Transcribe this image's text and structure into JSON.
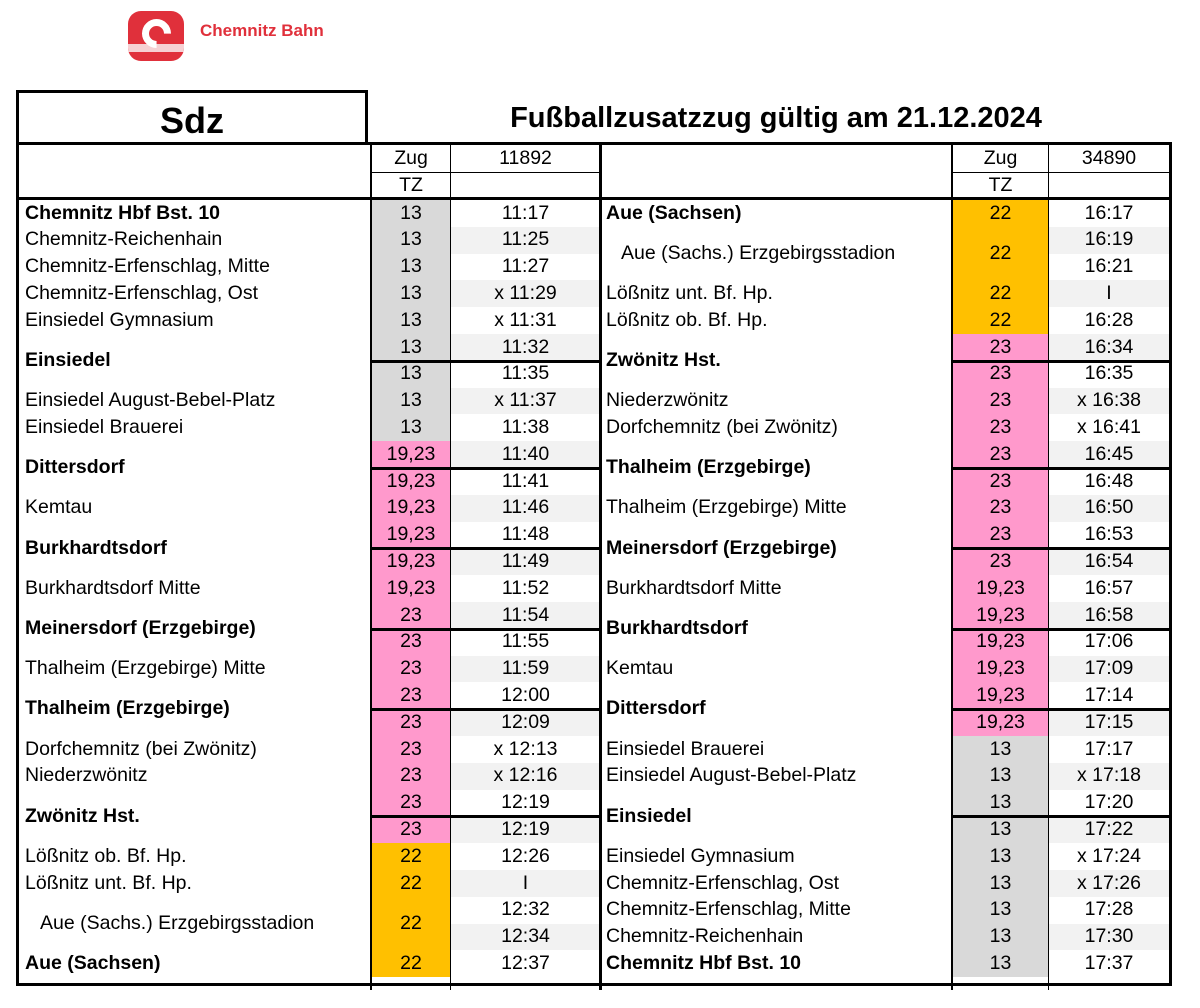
{
  "brand": {
    "name": "Chemnitz Bahn",
    "logo_letter": "C",
    "color": "#e0303b"
  },
  "header": {
    "sdz": "Sdz",
    "title": "Fußballzusatzzug gültig am 21.12.2024"
  },
  "table_header": {
    "zug_label": "Zug",
    "tz_label": "TZ"
  },
  "colors": {
    "grey": "#d9d9d9",
    "pink": "#ff99cc",
    "orange": "#ffc000",
    "stripe": "#f2f2f2"
  },
  "left": {
    "train": "11892",
    "rows": [
      {
        "station": "Chemnitz Hbf Bst. 10",
        "bold": true,
        "tz": "13",
        "tz_color": "grey",
        "times": [
          "11:17"
        ]
      },
      {
        "station": "Chemnitz-Reichenhain",
        "tz": "13",
        "tz_color": "grey",
        "times": [
          "11:25"
        ]
      },
      {
        "station": "Chemnitz-Erfenschlag, Mitte",
        "tz": "13",
        "tz_color": "grey",
        "times": [
          "11:27"
        ]
      },
      {
        "station": "Chemnitz-Erfenschlag, Ost",
        "tz": "13",
        "tz_color": "grey",
        "times": [
          "x 11:29"
        ]
      },
      {
        "station": "Einsiedel Gymnasium",
        "tz": "13",
        "tz_color": "grey",
        "times": [
          "x 11:31"
        ]
      },
      {
        "station": "Einsiedel",
        "bold": true,
        "tz": [
          "13",
          "13"
        ],
        "tz_color": "grey",
        "times": [
          "11:32",
          "11:35"
        ]
      },
      {
        "station": "Einsiedel August-Bebel-Platz",
        "tz": "13",
        "tz_color": "grey",
        "times": [
          "x 11:37"
        ]
      },
      {
        "station": "Einsiedel Brauerei",
        "tz": "13",
        "tz_color": "grey",
        "times": [
          "11:38"
        ]
      },
      {
        "station": "Dittersdorf",
        "bold": true,
        "tz": [
          "19,23",
          "19,23"
        ],
        "tz_color": "pink",
        "times": [
          "11:40",
          "11:41"
        ]
      },
      {
        "station": "Kemtau",
        "tz": "19,23",
        "tz_color": "pink",
        "times": [
          "11:46"
        ]
      },
      {
        "station": "Burkhardtsdorf",
        "bold": true,
        "tz": [
          "19,23",
          "19,23"
        ],
        "tz_color": "pink",
        "times": [
          "11:48",
          "11:49"
        ]
      },
      {
        "station": "Burkhardtsdorf Mitte",
        "tz": "19,23",
        "tz_color": "pink",
        "times": [
          "11:52"
        ]
      },
      {
        "station": "Meinersdorf (Erzgebirge)",
        "bold": true,
        "tz": [
          "23",
          "23"
        ],
        "tz_color": "pink",
        "times": [
          "11:54",
          "11:55"
        ]
      },
      {
        "station": "Thalheim (Erzgebirge) Mitte",
        "tz": "23",
        "tz_color": "pink",
        "times": [
          "11:59"
        ]
      },
      {
        "station": "Thalheim (Erzgebirge)",
        "bold": true,
        "tz": [
          "23",
          "23"
        ],
        "tz_color": "pink",
        "times": [
          "12:00",
          "12:09"
        ]
      },
      {
        "station": "Dorfchemnitz (bei Zwönitz)",
        "tz": "23",
        "tz_color": "pink",
        "times": [
          "x 12:13"
        ]
      },
      {
        "station": "Niederzwönitz",
        "tz": "23",
        "tz_color": "pink",
        "times": [
          "x 12:16"
        ]
      },
      {
        "station": "Zwönitz Hst.",
        "bold": true,
        "tz": [
          "23",
          "23"
        ],
        "tz_color": "pink",
        "times": [
          "12:19",
          "12:19"
        ]
      },
      {
        "station": "Lößnitz ob. Bf. Hp.",
        "tz": "22",
        "tz_color": "orange",
        "times": [
          "12:26"
        ]
      },
      {
        "station": "Lößnitz unt. Bf. Hp.",
        "tz": "22",
        "tz_color": "orange",
        "times": [
          "I"
        ]
      },
      {
        "station": "Aue (Sachs.) Erzgebirgsstadion",
        "indent": true,
        "tz": "22",
        "tz_color": "orange",
        "times": [
          "12:32",
          "12:34"
        ]
      },
      {
        "station": "Aue (Sachsen)",
        "bold": true,
        "tz": "22",
        "tz_color": "orange",
        "times": [
          "12:37"
        ]
      }
    ]
  },
  "right": {
    "train": "34890",
    "rows": [
      {
        "station": "Aue (Sachsen)",
        "bold": true,
        "tz": "22",
        "tz_color": "orange",
        "times": [
          "16:17"
        ]
      },
      {
        "station": "Aue (Sachs.) Erzgebirgsstadion",
        "indent": true,
        "tz": "22",
        "tz_color": "orange",
        "times": [
          "16:19",
          "16:21"
        ]
      },
      {
        "station": "Lößnitz unt. Bf. Hp.",
        "tz": "22",
        "tz_color": "orange",
        "times": [
          "I"
        ]
      },
      {
        "station": "Lößnitz ob. Bf. Hp.",
        "tz": "22",
        "tz_color": "orange",
        "times": [
          "16:28"
        ]
      },
      {
        "station": "Zwönitz Hst.",
        "bold": true,
        "tz": [
          "23",
          "23"
        ],
        "tz_color": "pink",
        "times": [
          "16:34",
          "16:35"
        ]
      },
      {
        "station": "Niederzwönitz",
        "tz": "23",
        "tz_color": "pink",
        "times": [
          "x 16:38"
        ]
      },
      {
        "station": "Dorfchemnitz (bei Zwönitz)",
        "tz": "23",
        "tz_color": "pink",
        "times": [
          "x 16:41"
        ]
      },
      {
        "station": "Thalheim (Erzgebirge)",
        "bold": true,
        "tz": [
          "23",
          "23"
        ],
        "tz_color": "pink",
        "times": [
          "16:45",
          "16:48"
        ]
      },
      {
        "station": "Thalheim (Erzgebirge) Mitte",
        "tz": "23",
        "tz_color": "pink",
        "times": [
          "16:50"
        ]
      },
      {
        "station": "Meinersdorf (Erzgebirge)",
        "bold": true,
        "tz": [
          "23",
          "23"
        ],
        "tz_color": "pink",
        "times": [
          "16:53",
          "16:54"
        ]
      },
      {
        "station": "Burkhardtsdorf Mitte",
        "tz": "19,23",
        "tz_color": "pink",
        "times": [
          "16:57"
        ]
      },
      {
        "station": "Burkhardtsdorf",
        "bold": true,
        "tz": [
          "19,23",
          "19,23"
        ],
        "tz_color": "pink",
        "times": [
          "16:58",
          "17:06"
        ]
      },
      {
        "station": "Kemtau",
        "tz": "19,23",
        "tz_color": "pink",
        "times": [
          "17:09"
        ]
      },
      {
        "station": "Dittersdorf",
        "bold": true,
        "tz": [
          "19,23",
          "19,23"
        ],
        "tz_color": "pink",
        "times": [
          "17:14",
          "17:15"
        ]
      },
      {
        "station": "Einsiedel Brauerei",
        "tz": "13",
        "tz_color": "grey",
        "times": [
          "17:17"
        ]
      },
      {
        "station": "Einsiedel August-Bebel-Platz",
        "tz": "13",
        "tz_color": "grey",
        "times": [
          "x 17:18"
        ]
      },
      {
        "station": "Einsiedel",
        "bold": true,
        "tz": [
          "13",
          "13"
        ],
        "tz_color": "grey",
        "times": [
          "17:20",
          "17:22"
        ]
      },
      {
        "station": "Einsiedel Gymnasium",
        "tz": "13",
        "tz_color": "grey",
        "times": [
          "x 17:24"
        ]
      },
      {
        "station": "Chemnitz-Erfenschlag, Ost",
        "tz": "13",
        "tz_color": "grey",
        "times": [
          "x 17:26"
        ]
      },
      {
        "station": "Chemnitz-Erfenschlag, Mitte",
        "tz": "13",
        "tz_color": "grey",
        "times": [
          "17:28"
        ]
      },
      {
        "station": "Chemnitz-Reichenhain",
        "tz": "13",
        "tz_color": "grey",
        "times": [
          "17:30"
        ]
      },
      {
        "station": "Chemnitz Hbf Bst. 10",
        "bold": true,
        "tz": "13",
        "tz_color": "grey",
        "times": [
          "17:37"
        ]
      }
    ]
  }
}
